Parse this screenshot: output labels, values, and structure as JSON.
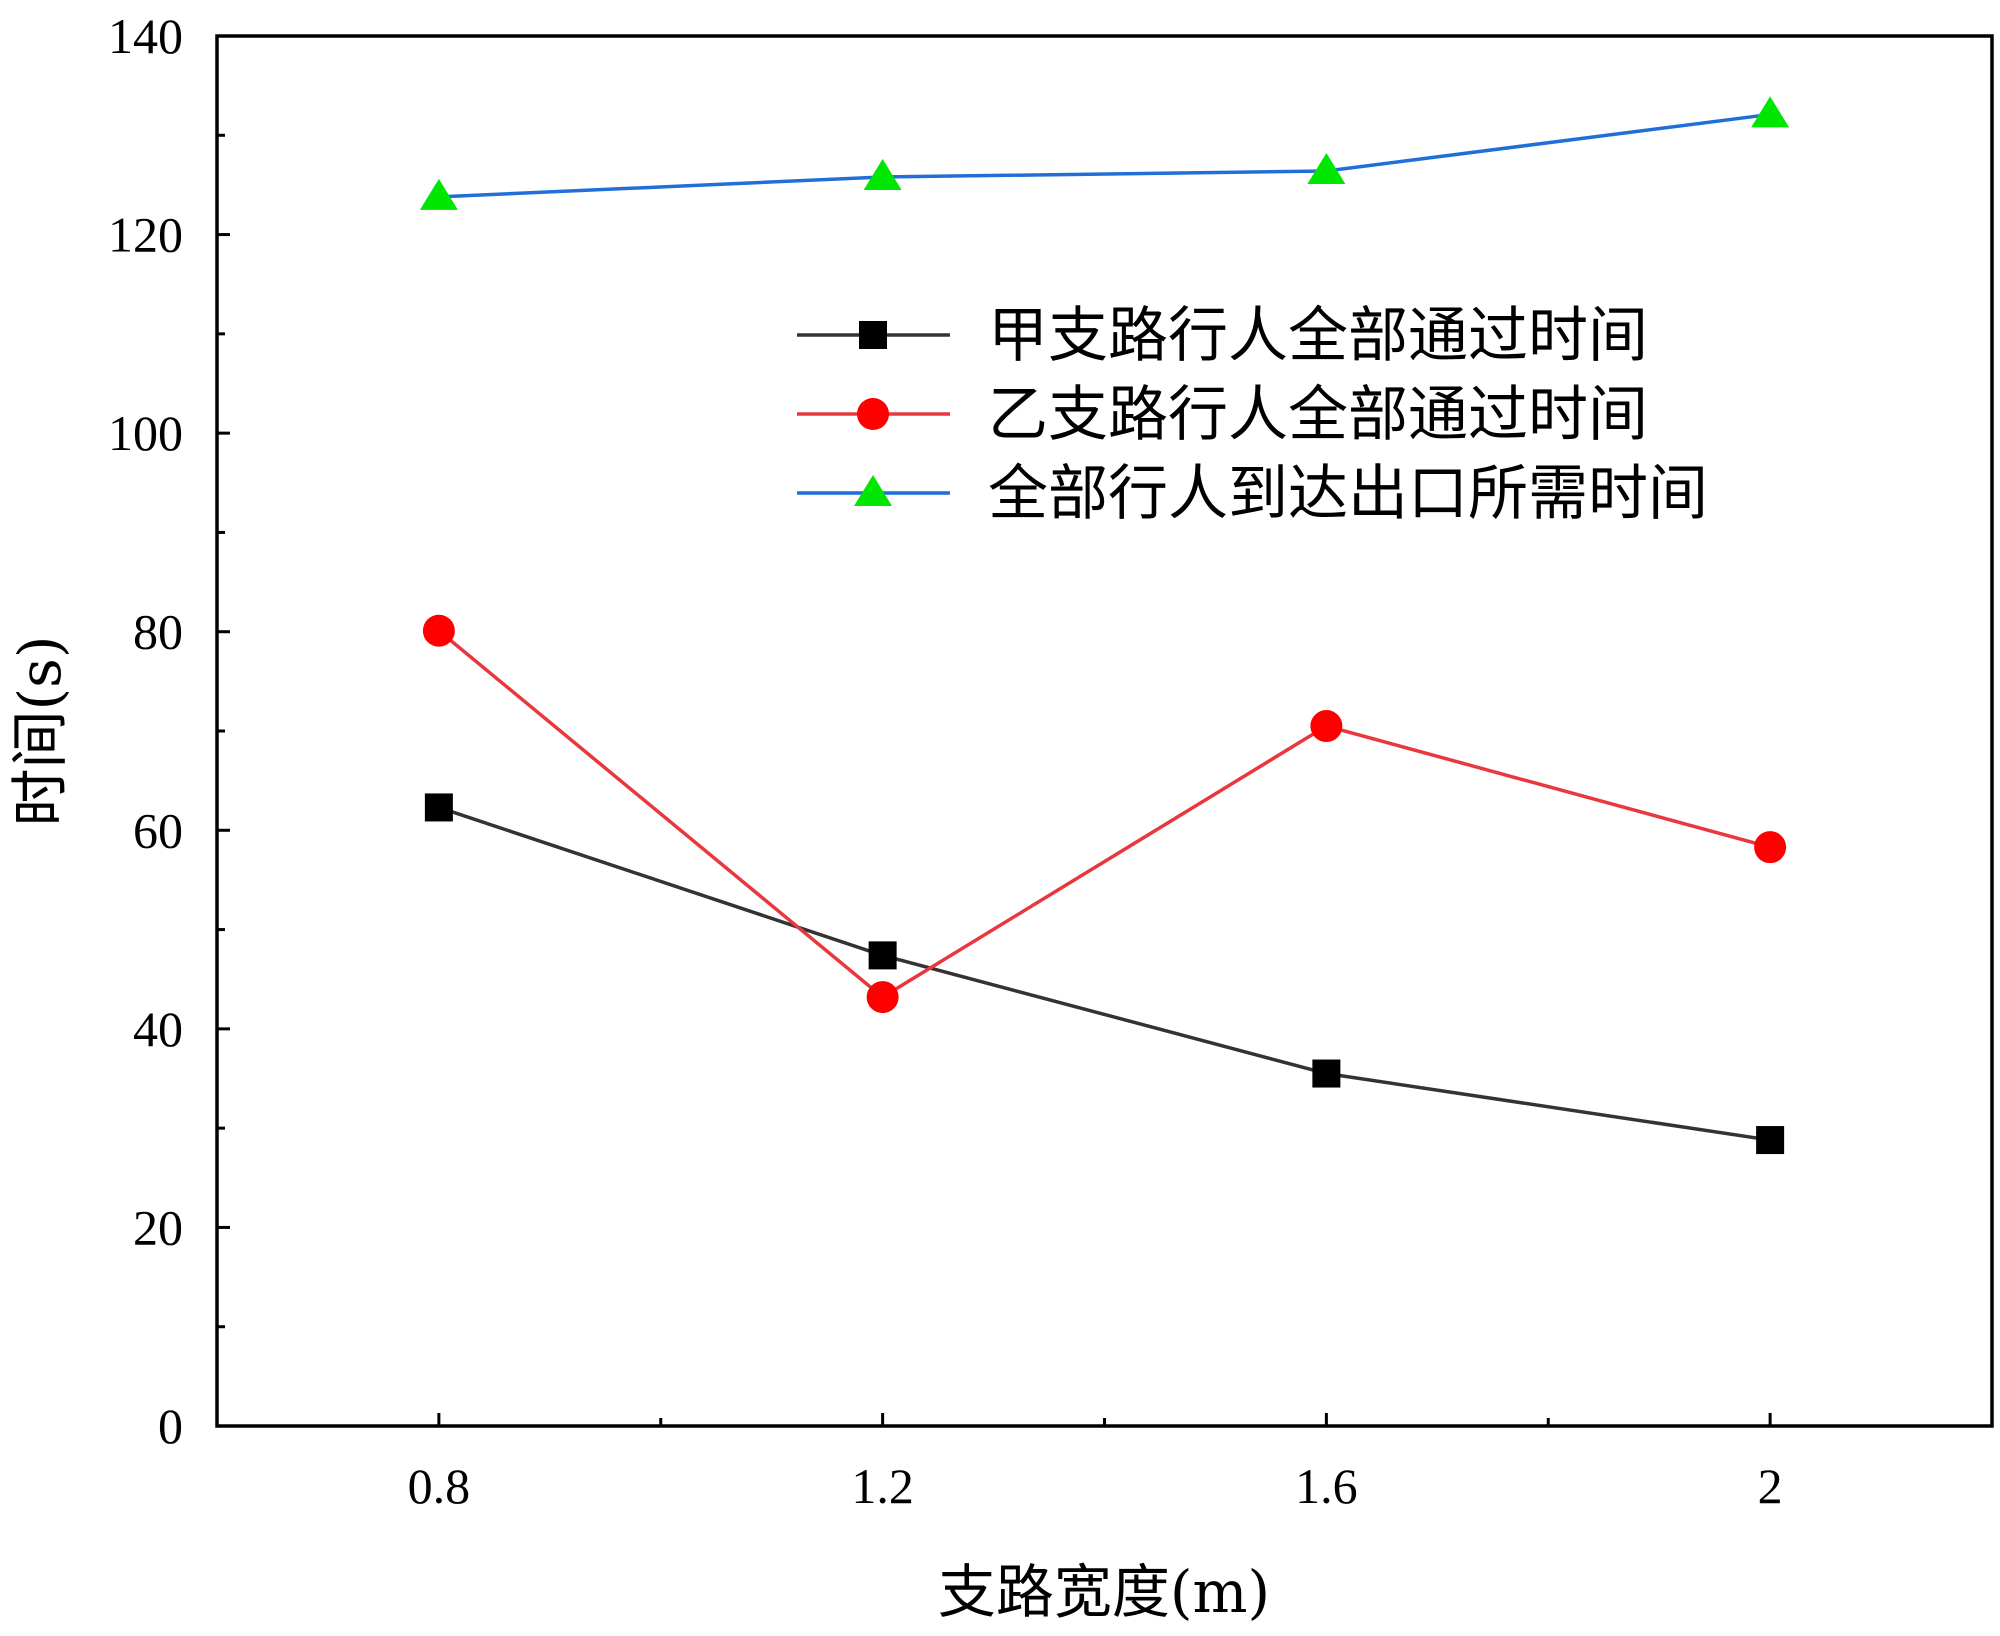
{
  "chart_data": {
    "type": "line",
    "title": "",
    "xlabel": "支路宽度(m)",
    "ylabel": "时间(s)",
    "x": [
      0.8,
      1.2,
      1.6,
      2
    ],
    "xlim": [
      0.6,
      2.2
    ],
    "ylim": [
      0,
      140
    ],
    "xticks": [
      0.8,
      1.2,
      1.6,
      2
    ],
    "xtick_labels": [
      "0.8",
      "1.2",
      "1.6",
      "2"
    ],
    "xminor_ticks": [
      1.0,
      1.4,
      1.8
    ],
    "yticks": [
      0,
      20,
      40,
      60,
      80,
      100,
      120,
      140
    ],
    "ytick_labels": [
      "0",
      "20",
      "40",
      "60",
      "80",
      "100",
      "120",
      "140"
    ],
    "yminor_ticks": [
      10,
      30,
      50,
      70,
      90,
      110,
      130
    ],
    "grid": false,
    "legend_position": "top-right",
    "series": [
      {
        "name": "甲支路行人全部通过时间",
        "values": [
          62.3,
          47.4,
          35.5,
          28.8
        ],
        "line_color": "#333333",
        "marker": "square",
        "marker_color": "#000000"
      },
      {
        "name": "乙支路行人全部通过时间",
        "values": [
          80.1,
          43.2,
          70.5,
          58.3
        ],
        "line_color": "#e8383d",
        "marker": "circle",
        "marker_color": "#ff0000"
      },
      {
        "name": "全部行人到达出口所需时间",
        "values": [
          123.8,
          125.8,
          126.4,
          132.1
        ],
        "line_color": "#1f6fd6",
        "marker": "triangle",
        "marker_color": "#00e600"
      }
    ]
  }
}
